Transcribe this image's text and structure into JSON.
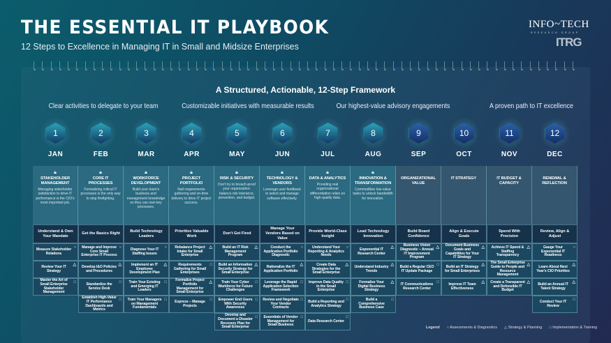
{
  "header": {
    "title": "THE ESSENTIAL IT PLAYBOOK",
    "subtitle": "12 Steps to Excellence in Managing IT in Small and Midsize Enterprises"
  },
  "logos": {
    "brand": "INFO~TECH",
    "brand_sub": "RESEARCH GROUP",
    "brand2": "ITRG"
  },
  "framework_title": "A Structured, Actionable, 12-Step Framework",
  "sections": [
    "Clear activities to delegate to your team",
    "Customizable initiatives with measurable results",
    "Our highest-value advisory engagements",
    "A proven path to IT excellence"
  ],
  "colors": {
    "hex_teal": "#1e7f95",
    "hex_blue": "#1d4a86",
    "card_teal": "#2b6a80",
    "card_blue": "#34566e"
  },
  "icons": {
    "circle": "○",
    "triangle": "△",
    "square": "□",
    "lock": "lock-icon"
  },
  "steps": [
    {
      "num": "1",
      "month": "JAN",
      "title": "STAKEHOLDER MANAGEMENT",
      "desc": "Managing stakeholder satisfaction to drive IT performance is the CIO's most important job.",
      "locked": true,
      "heading": "Understand & Own Your Mandate",
      "items": [
        {
          "t": "Measure Stakeholder Relations",
          "i": "circle"
        },
        {
          "t": "Review Your IT Strategy",
          "i": "triangle"
        },
        {
          "t": "Master the Art of Small Enterprise Stakeholder Management",
          "i": "square"
        }
      ]
    },
    {
      "num": "2",
      "month": "FEB",
      "title": "CORE IT PROCESSES",
      "desc": "Formalizing critical IT processes is the only way to stop firefighting.",
      "locked": true,
      "heading": "Get the Basics Right",
      "items": [
        {
          "t": "Manage and Improve Core Small Enterprise IT Process",
          "i": "circle"
        },
        {
          "t": "Develop I&O Policies and Procedures",
          "i": "triangle"
        },
        {
          "t": "Standardize the Service Desk",
          "i": "square"
        },
        {
          "t": "Establish High-Value IT Performance Dashboards and Metrics",
          "i": "square"
        }
      ]
    },
    {
      "num": "3",
      "month": "MAR",
      "title": "WORKFORCE DEVELOPMENT",
      "desc": "Build your team's business and management knowledge so they can own key processes.",
      "locked": true,
      "heading": "Build Technology Leaders",
      "items": [
        {
          "t": "Diagnose Your IT Staffing Issues",
          "i": "circle"
        },
        {
          "t": "Implement an IT Employee Development Plan",
          "i": "triangle"
        },
        {
          "t": "Train Your Existing and Emerging IT Leaders",
          "i": "square"
        },
        {
          "t": "Train Your Managers on Management Fundamentals",
          "i": "square"
        }
      ]
    },
    {
      "num": "4",
      "month": "APR",
      "title": "PROJECT PORTFOLIO",
      "desc": "Nail requirements gathering and on-time delivery to drive IT project success.",
      "locked": true,
      "heading": "Prioritize Valuable Work",
      "items": [
        {
          "t": "Rebalance Project Intake for Small Enterprise",
          "i": "triangle"
        },
        {
          "t": "Requirements Gathering for Small Enterprises",
          "i": "square"
        },
        {
          "t": "Formalize Project Portfolio Management for Small Enterprise",
          "i": "triangle"
        },
        {
          "t": "Express – Manage Projects",
          "i": "square"
        }
      ]
    },
    {
      "num": "5",
      "month": "MAY",
      "title": "RISK & SECURITY",
      "desc": "Don't try to breach-proof your organization: balance risk tolerance, prevention, and budget.",
      "locked": true,
      "heading": "Don't Get Fired",
      "items": [
        {
          "t": "Build an IT Risk Management Program",
          "i": "triangle"
        },
        {
          "t": "Build an Information Security Strategy for Small Enterprise",
          "i": "triangle"
        },
        {
          "t": "Train Your Cyber Workforce for Future Challenges",
          "i": "square"
        },
        {
          "t": "Empower End Users With Security Awareness",
          "i": "square"
        },
        {
          "t": "Develop and Document a Disaster Recovery Plan for Small Enterprise",
          "i": "square"
        }
      ]
    },
    {
      "num": "6",
      "month": "JUN",
      "title": "TECHNOLOGY & VENDORS",
      "desc": "Leverage user feedback to select and manage software effectively.",
      "locked": true,
      "heading": "Manage Your Vendors Based on Value",
      "items": [
        {
          "t": "Conduct the Application Portfolio Diagnostic",
          "i": "circle"
        },
        {
          "t": "Rationalize the IT Application Portfolio",
          "i": "triangle"
        },
        {
          "t": "Leverage the Rapid Application Selection Framework",
          "i": "square"
        },
        {
          "t": "Review and Negotiate Your Vendor Contracts",
          "i": "square"
        },
        {
          "t": "Essentials of Vendor Management for Small Business",
          "i": "square"
        }
      ]
    },
    {
      "num": "7",
      "month": "JUL",
      "title": "DATA & ANALYTICS",
      "desc": "Providing real organizational differentiation relies on high-quality data.",
      "locked": true,
      "heading": "Provide World-Class Insight",
      "items": [
        {
          "t": "Understand Your Reporting & Analytics Needs",
          "i": "circle"
        },
        {
          "t": "Create Data Strategies for the Small Enterprise",
          "i": "triangle"
        },
        {
          "t": "Improve Data Quality in the Small Enterprise",
          "i": "square"
        },
        {
          "t": "Build a Reporting and Analytics Strategy",
          "i": "square"
        },
        {
          "t": "Data Research Center",
          "i": "square"
        }
      ]
    },
    {
      "num": "8",
      "month": "AUG",
      "title": "INNOVATION & TRANSFORMATION",
      "desc": "Commoditize low-value tasks to unlock bandwidth for innovation.",
      "locked": true,
      "heading": "Lead Technology Innovation",
      "items": [
        {
          "t": "Exponential IT Research Center",
          "i": "triangle"
        },
        {
          "t": "Understand Industry Trends",
          "i": "triangle"
        },
        {
          "t": "Formalize Your Digital Business Strategy",
          "i": "triangle"
        },
        {
          "t": "Build a Comprehensive Business Case",
          "i": "square"
        }
      ]
    },
    {
      "num": "9",
      "month": "SEP",
      "title": "ORGANIZATIONAL VALUE",
      "desc": "",
      "locked": false,
      "heading": "Build Board Confidence",
      "items": [
        {
          "t": "Business Vision Diagnostic – Annual IT Improvement Program",
          "i": "triangle"
        },
        {
          "t": "Build a Regular CEO IT Update Package",
          "i": "square"
        },
        {
          "t": "IT Communications Research Center",
          "i": "square"
        }
      ]
    },
    {
      "num": "10",
      "month": "OCT",
      "title": "IT STRATEGY",
      "desc": "",
      "locked": false,
      "heading": "Align & Execute Goals",
      "items": [
        {
          "t": "Document Business Goals and Capabilities for Your IT Strategy",
          "i": "triangle"
        },
        {
          "t": "Build an IT Strategy for Small Enterprises",
          "i": "triangle"
        },
        {
          "t": "Improve IT Team Effectiveness",
          "i": "triangle"
        }
      ]
    },
    {
      "num": "11",
      "month": "NOV",
      "title": "IT BUDGET & CAPACITY",
      "desc": "",
      "locked": false,
      "heading": "Spend With Precision",
      "items": [
        {
          "t": "Achieve IT Spend & Staffing Transparency",
          "i": "triangle"
        },
        {
          "t": "The Small Enterprise Guide to People and Resource Management",
          "i": "triangle"
        },
        {
          "t": "Create a Transparent and Defensible IT Budget",
          "i": "triangle"
        }
      ]
    },
    {
      "num": "12",
      "month": "DEC",
      "title": "RENEWAL & REFLECTION",
      "desc": "",
      "locked": false,
      "heading": "Review, Align & Adjust",
      "items": [
        {
          "t": "Gauge Your Exponential IT Readiness",
          "i": "circle"
        },
        {
          "t": "Learn About Next Year's CIO Priorities",
          "i": "triangle"
        },
        {
          "t": "Build an Annual IT Talent Strategy",
          "i": "triangle"
        },
        {
          "t": "Conduct Your IT Review",
          "i": "square"
        }
      ]
    }
  ],
  "legend": {
    "label": "Legend",
    "items": [
      {
        "i": "circle",
        "t": "Assessments & Diagnostics"
      },
      {
        "i": "triangle",
        "t": "Strategy & Planning"
      },
      {
        "i": "square",
        "t": "Implementation & Training"
      }
    ]
  }
}
